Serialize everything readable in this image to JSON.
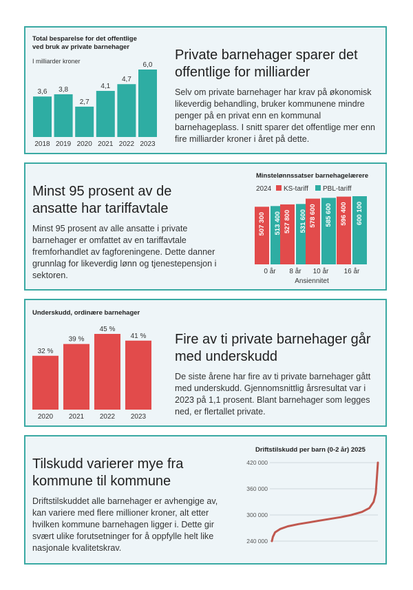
{
  "colors": {
    "teal": "#2eada3",
    "red": "#e24b4b",
    "curve": "#c0584f",
    "border": "#3aa9a3",
    "card_bg": "#eef5f8"
  },
  "card1": {
    "heading": "Private barnehager sparer det offentlige for milliarder",
    "body": "Selv om private barnehager har krav på økonomisk likeverdig behandling, bruker kommunene mindre penger på en privat enn en kommunal barnehageplass. I snitt sparer det offentlige mer enn fire milliarder kroner i året på dette.",
    "chart_title": "Total besparelse for det offentlige ved bruk av private barnehager",
    "chart_subtitle": "I milliarder kroner"
  },
  "card2": {
    "heading": "Minst 95 prosent av de ansatte har tariffavtale",
    "body": "Minst 95 prosent av alle ansatte i private barnehager er omfattet av en tariffavtale fremforhandlet av fagforeningene. Dette danner grunnlag for likeverdig lønn og tjenestepensjon i sektoren.",
    "chart_title": "Minstelønnssatser barnehagelærere",
    "legend_year": "2024"
  },
  "card3": {
    "heading": "Fire av ti private barnehager går med underskudd",
    "body": "De siste årene har fire av ti private barnehager gått med underskudd. Gjennomsnittlig årsresultat var i 2023 på 1,1 prosent. Blant barnehager som legges ned, er flertallet private.",
    "chart_title": "Underskudd, ordinære barnehager"
  },
  "card4": {
    "heading": "Tilskudd varierer mye fra kommune til kommune",
    "body": "Driftstilskuddet alle barnehager er avhengige av, kan variere med flere millioner kroner, alt etter hvilken kommune barnehagen ligger i. Dette gir svært ulike forutsetninger for å oppfylle helt like nasjonale kvalitetskrav.",
    "chart_title": "Driftstilskudd per barn (0-2 år) 2025"
  },
  "chart_data": [
    {
      "type": "bar",
      "title": "Total besparelse for det offentlige ved bruk av private barnehager",
      "subtitle": "I milliarder kroner",
      "categories": [
        "2018",
        "2019",
        "2020",
        "2021",
        "2022",
        "2023"
      ],
      "values": [
        3.6,
        3.8,
        2.7,
        4.1,
        4.7,
        6.0
      ],
      "labels": [
        "3,6",
        "3,8",
        "2,7",
        "4,1",
        "4,7",
        "6,0"
      ],
      "ylim": [
        0,
        6.0
      ]
    },
    {
      "type": "bar",
      "title": "Minstelønnssatser barnehagelærere",
      "legend_year": "2024",
      "xlabel": "Ansiennitet",
      "categories": [
        "0 år",
        "8 år",
        "10 år",
        "16 år"
      ],
      "series": [
        {
          "name": "KS-tariff",
          "values": [
            507300,
            527800,
            578600,
            596400
          ],
          "labels": [
            "507 300",
            "527 800",
            "578 600",
            "596 400"
          ]
        },
        {
          "name": "PBL-tariff",
          "values": [
            513400,
            531600,
            585600,
            600100
          ],
          "labels": [
            "513 400",
            "531 600",
            "585 600",
            "600 100"
          ]
        }
      ],
      "ylim": [
        0,
        600100
      ]
    },
    {
      "type": "bar",
      "title": "Underskudd, ordinære barnehager",
      "categories": [
        "2020",
        "2021",
        "2022",
        "2023"
      ],
      "values": [
        32,
        39,
        45,
        41
      ],
      "labels": [
        "32 %",
        "39 %",
        "45 %",
        "41 %"
      ],
      "ylim": [
        0,
        45
      ]
    },
    {
      "type": "line",
      "title": "Driftstilskudd per barn (0-2 år) 2025",
      "yticks": [
        240000,
        300000,
        360000,
        420000
      ],
      "ytick_labels": [
        "240 000",
        "300 000",
        "360 000",
        "420 000"
      ],
      "ylim": [
        240000,
        420000
      ],
      "grid": true,
      "x": [
        0,
        0.01,
        0.03,
        0.08,
        0.15,
        0.25,
        0.35,
        0.45,
        0.55,
        0.65,
        0.75,
        0.85,
        0.92,
        0.96,
        0.98,
        0.99,
        1.0
      ],
      "y": [
        240000,
        250000,
        260000,
        268000,
        274000,
        279000,
        283000,
        287000,
        291000,
        295000,
        300000,
        307000,
        316000,
        330000,
        350000,
        385000,
        420000
      ]
    }
  ]
}
